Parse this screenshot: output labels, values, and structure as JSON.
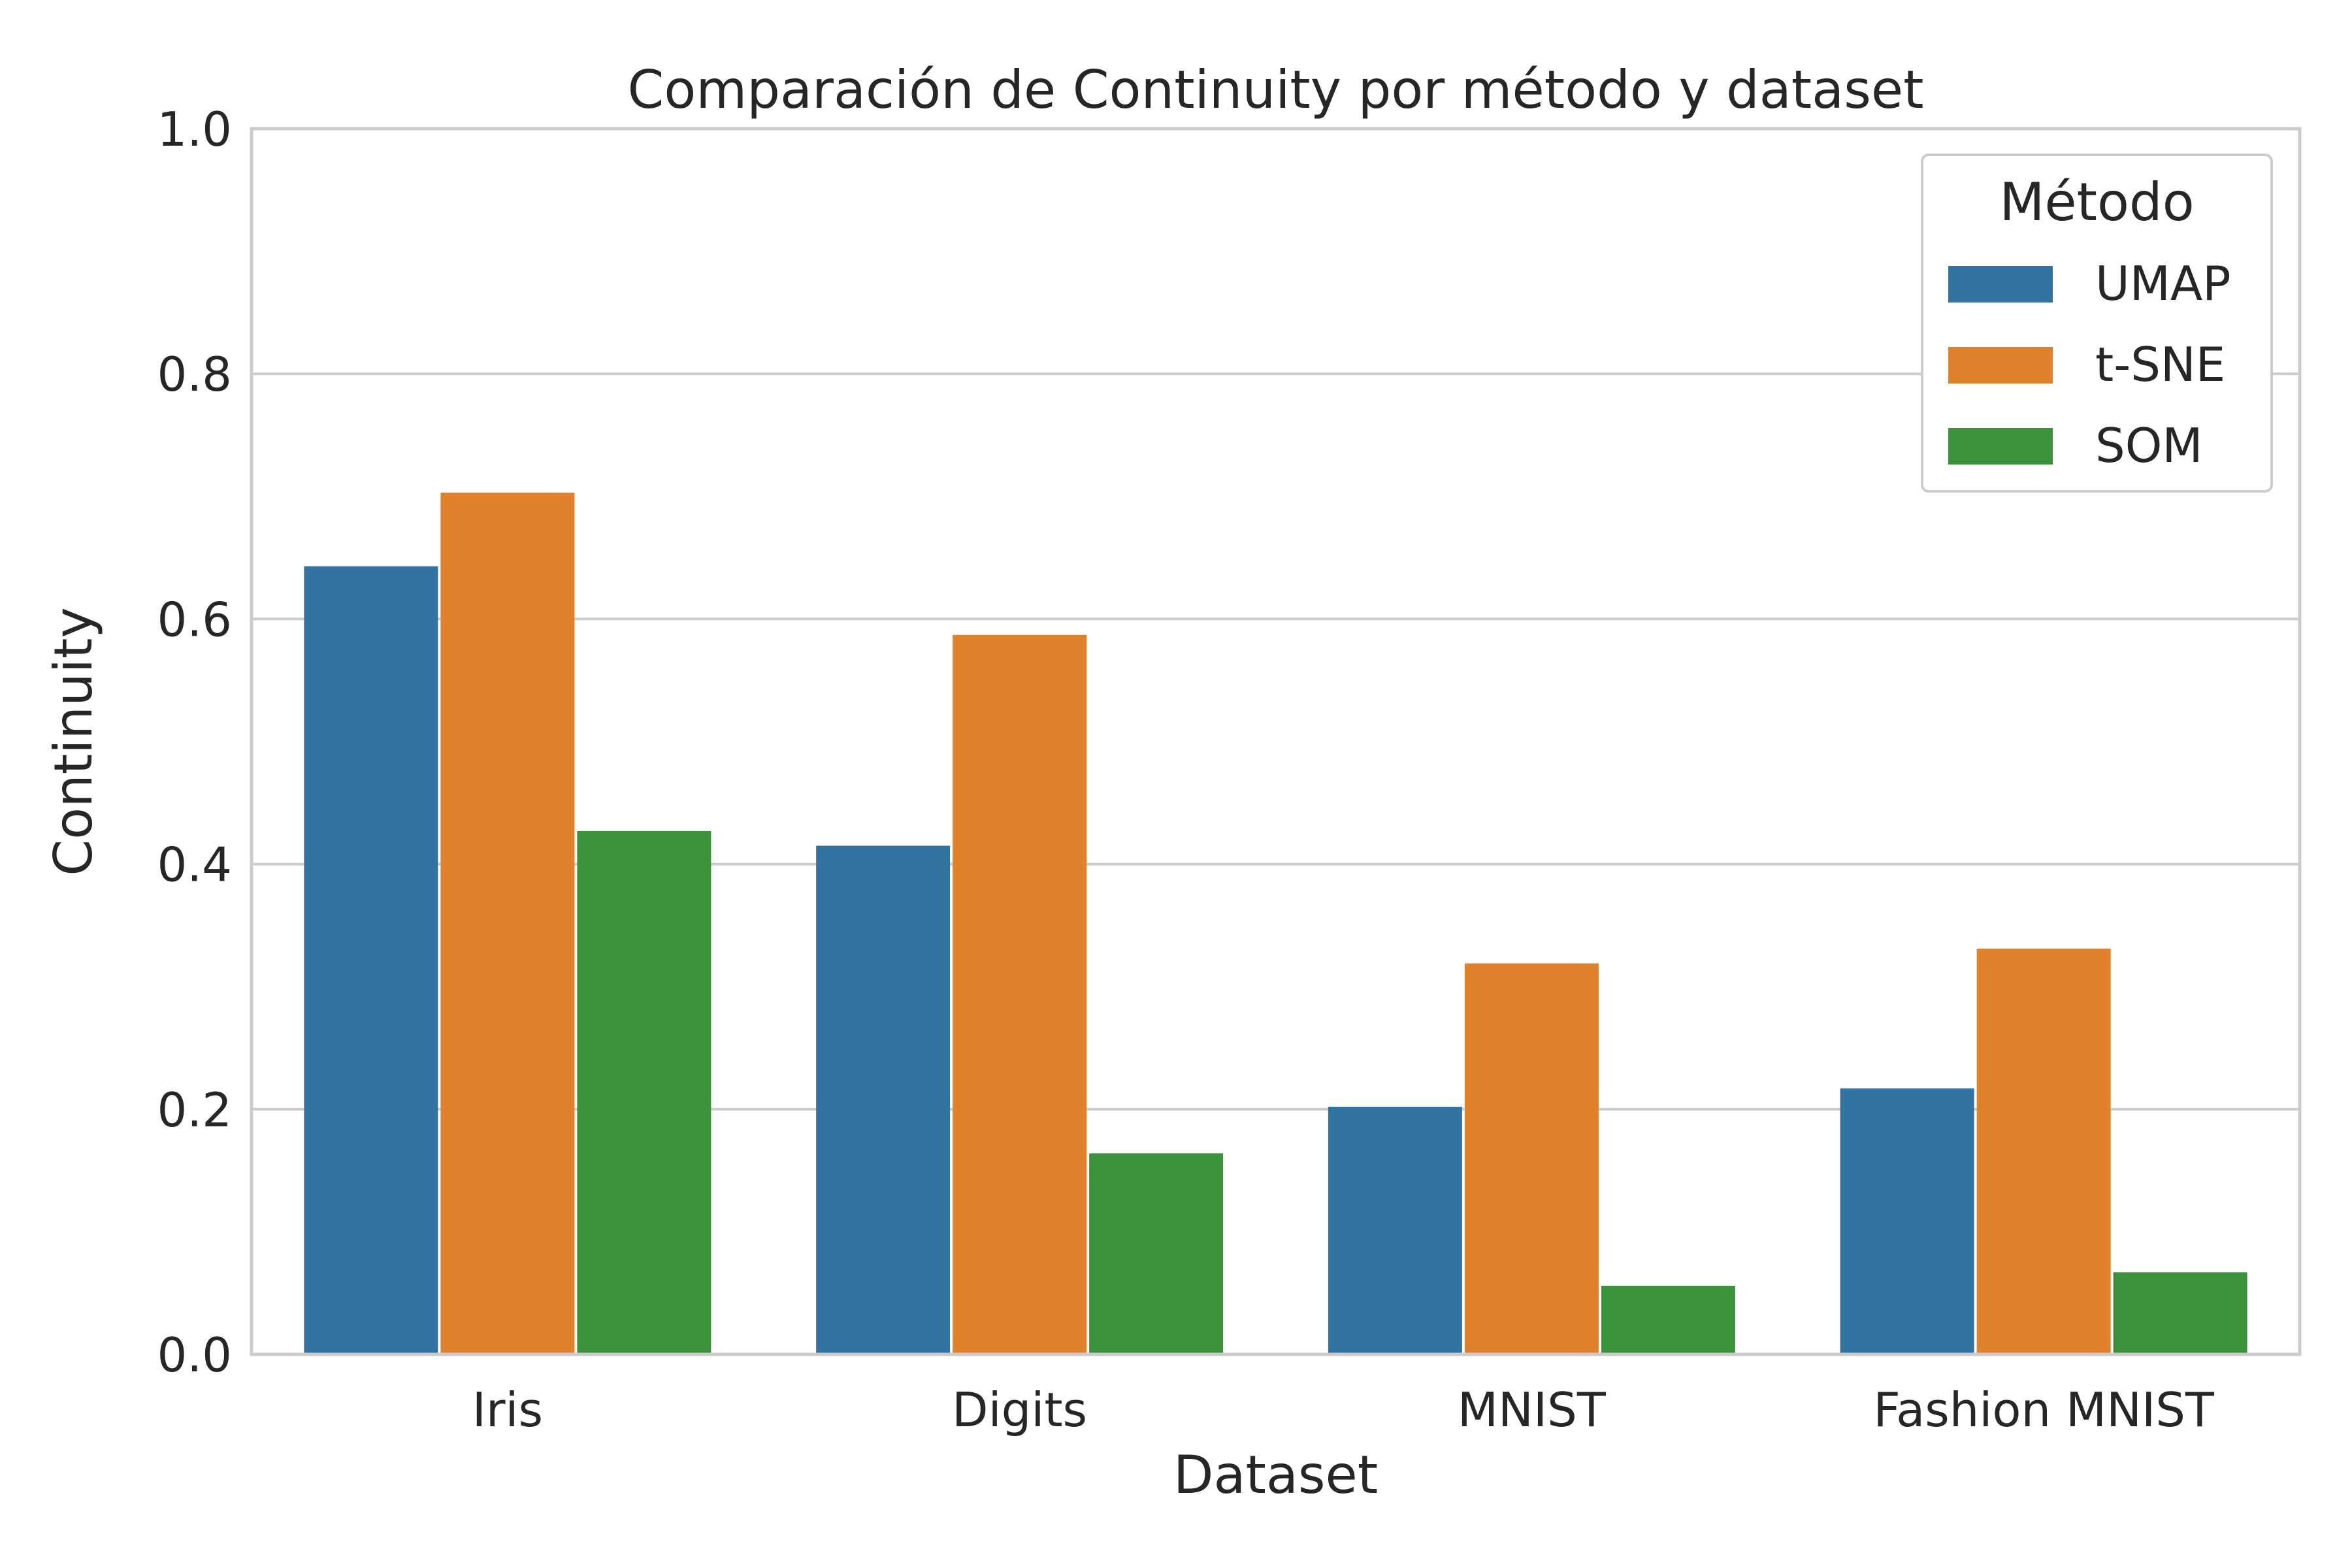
{
  "chart_data": {
    "type": "bar",
    "title": "Comparación de Continuity por método y dataset",
    "xlabel": "Dataset",
    "ylabel": "Continuity",
    "ylim": [
      0,
      1.0
    ],
    "yticks": [
      "0.0",
      "0.2",
      "0.4",
      "0.6",
      "0.8",
      "1.0"
    ],
    "categories": [
      "Iris",
      "Digits",
      "MNIST",
      "Fashion MNIST"
    ],
    "grid": "y",
    "legend": {
      "title": "Método",
      "position": "top-right"
    },
    "series": [
      {
        "name": "UMAP",
        "color": "#3274a1",
        "values": [
          0.643,
          0.415,
          0.202,
          0.217
        ]
      },
      {
        "name": "t-SNE",
        "color": "#e1812c",
        "values": [
          0.703,
          0.587,
          0.319,
          0.331
        ]
      },
      {
        "name": "SOM",
        "color": "#3a923a",
        "values": [
          0.427,
          0.164,
          0.056,
          0.067
        ]
      }
    ]
  }
}
